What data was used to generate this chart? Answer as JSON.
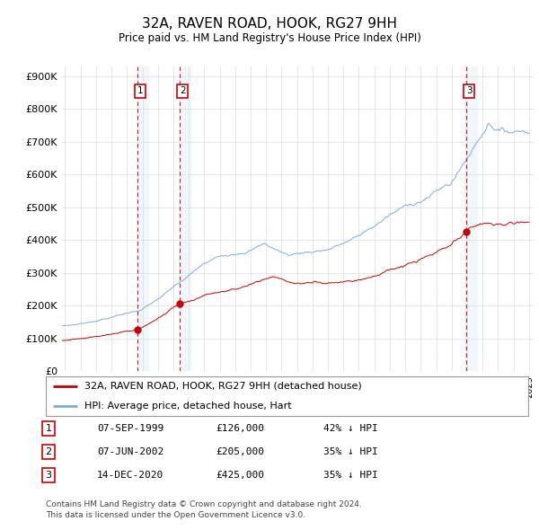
{
  "title": "32A, RAVEN ROAD, HOOK, RG27 9HH",
  "subtitle": "Price paid vs. HM Land Registry's House Price Index (HPI)",
  "legend_entries": [
    "32A, RAVEN ROAD, HOOK, RG27 9HH (detached house)",
    "HPI: Average price, detached house, Hart"
  ],
  "table": [
    {
      "num": "1",
      "date": "07-SEP-1999",
      "price": "£126,000",
      "pct": "42% ↓ HPI"
    },
    {
      "num": "2",
      "date": "07-JUN-2002",
      "price": "£205,000",
      "pct": "35% ↓ HPI"
    },
    {
      "num": "3",
      "date": "14-DEC-2020",
      "price": "£425,000",
      "pct": "35% ↓ HPI"
    }
  ],
  "transactions": [
    {
      "date_num": 1999.67,
      "price": 126000,
      "label": "1"
    },
    {
      "date_num": 2002.42,
      "price": 205000,
      "label": "2"
    },
    {
      "date_num": 2020.95,
      "price": 425000,
      "label": "3"
    }
  ],
  "footer": [
    "Contains HM Land Registry data © Crown copyright and database right 2024.",
    "This data is licensed under the Open Government Licence v3.0."
  ],
  "hpi_color": "#7aacd6",
  "price_color": "#cc0000",
  "vline_color": "#cc0000",
  "shade_color": "#d8e8f5",
  "ylim_max": 900000,
  "yticks": [
    0,
    100000,
    200000,
    300000,
    400000,
    500000,
    600000,
    700000,
    800000,
    900000
  ],
  "xlim_start": 1994.8,
  "xlim_end": 2025.3,
  "background_color": "#ffffff",
  "grid_color": "#cccccc"
}
